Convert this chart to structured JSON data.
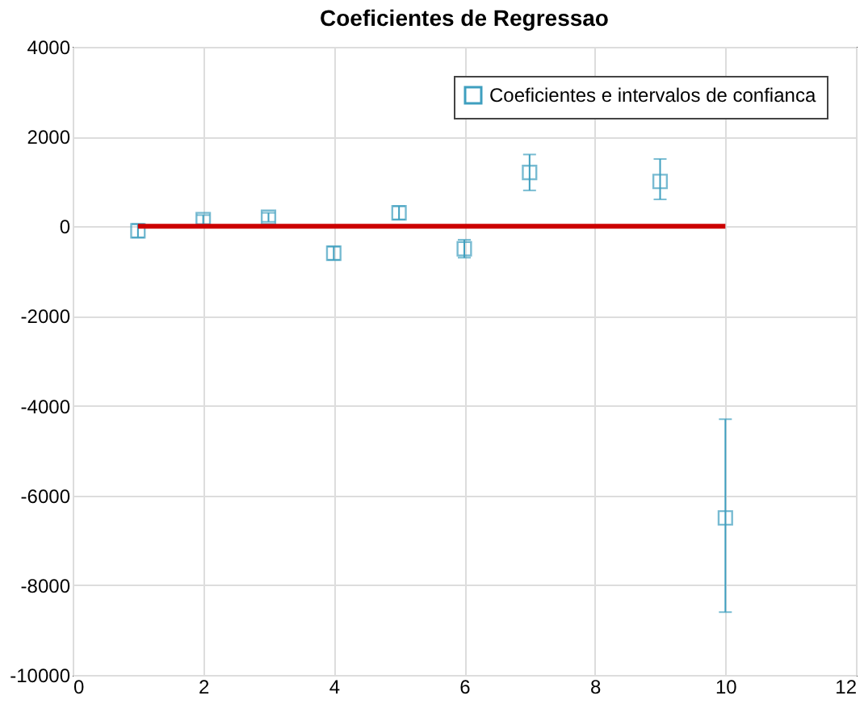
{
  "chart_data": {
    "type": "scatter",
    "title": "Coeficientes de Regressao",
    "x": [
      1,
      2,
      3,
      4,
      5,
      6,
      7,
      8,
      9,
      10
    ],
    "series": [
      {
        "name": "Coeficientes e intervalos de confianca",
        "color": "#3f9fbf",
        "marker": "square",
        "values": [
          -100,
          150,
          200,
          -600,
          300,
          -500,
          1200,
          null,
          1000,
          -6500
        ],
        "errors": [
          [
            -250,
            50
          ],
          [
            50,
            250
          ],
          [
            100,
            300
          ],
          [
            -750,
            -450
          ],
          [
            150,
            450
          ],
          [
            -700,
            -300
          ],
          [
            800,
            1600
          ],
          null,
          [
            600,
            1500
          ],
          [
            -8600,
            -4300
          ]
        ]
      },
      {
        "color": "#cc0000",
        "type": "line",
        "marker": "none",
        "x": [
          1,
          10
        ],
        "values": [
          0,
          0
        ]
      }
    ],
    "xlim": [
      0,
      12
    ],
    "xticks": [
      0,
      2,
      4,
      6,
      8,
      10,
      12
    ],
    "ylim": [
      -10000,
      4000
    ],
    "yticks": [
      -10000,
      -8000,
      -6000,
      -4000,
      -2000,
      0,
      2000,
      4000
    ],
    "grid": true,
    "legend": "top right"
  }
}
